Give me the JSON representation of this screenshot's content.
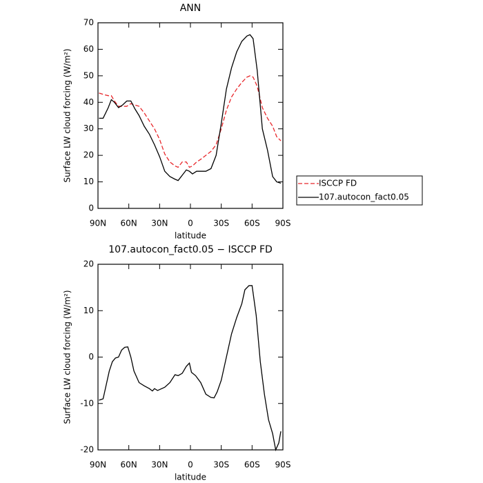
{
  "chart_data": [
    {
      "type": "line",
      "title": "ANN",
      "xlabel": "latitude",
      "ylabel": "Surface LW cloud forcing (W/m²)",
      "x": [
        89,
        85,
        80,
        77,
        74,
        70,
        66,
        62,
        58,
        54,
        50,
        45,
        40,
        35,
        30,
        25,
        20,
        15,
        12,
        8,
        4,
        1,
        -2,
        -6,
        -10,
        -15,
        -20,
        -25,
        -30,
        -35,
        -40,
        -45,
        -50,
        -55,
        -58,
        -61,
        -65,
        -70,
        -75,
        -80,
        -84,
        -88
      ],
      "series": [
        {
          "name": "ISCCP FD",
          "color": "#e8262a",
          "linestyle": "dashed",
          "values": [
            43.5,
            43,
            42.5,
            42.5,
            40.5,
            38.5,
            38.5,
            38.5,
            39.5,
            39,
            38.5,
            36,
            33,
            30,
            26,
            20.5,
            17.5,
            16,
            15.5,
            17.5,
            17.5,
            15.5,
            16,
            17.5,
            18.5,
            20,
            21.5,
            24,
            30,
            37,
            42,
            45,
            47.5,
            49.5,
            50,
            49.5,
            46,
            38,
            34,
            31,
            27,
            25.5
          ]
        },
        {
          "name": "107.autocon_fact0.05",
          "color": "#000000",
          "linestyle": "solid",
          "values": [
            34,
            34,
            38,
            41,
            40,
            38,
            39,
            40.5,
            40.5,
            37.5,
            35,
            31,
            28,
            24,
            19.5,
            14,
            12,
            11,
            10.5,
            12.5,
            14.5,
            14,
            13,
            14,
            14,
            14,
            15,
            20,
            32,
            45,
            53,
            59,
            63,
            65,
            65.5,
            64,
            52,
            30,
            22,
            12,
            10,
            9.5
          ]
        }
      ],
      "xlim": [
        90,
        -90
      ],
      "xticks": [
        {
          "value": 90,
          "label": "90N"
        },
        {
          "value": 60,
          "label": "60N"
        },
        {
          "value": 30,
          "label": "30N"
        },
        0,
        {
          "value": -30,
          "label": "30S"
        },
        {
          "value": -60,
          "label": "60S"
        },
        {
          "value": -90,
          "label": "90S"
        }
      ],
      "ylim": [
        0,
        70
      ],
      "yticks": [
        0,
        10,
        20,
        30,
        40,
        50,
        60,
        70
      ],
      "legend": "right"
    },
    {
      "type": "line",
      "title": "107.autocon_fact0.05 − ISCCP FD",
      "xlabel": "latitude",
      "ylabel": "Surface LW cloud forcing (W/m²)",
      "x": [
        89,
        85,
        82,
        79,
        76,
        73,
        70,
        67,
        64,
        61,
        58,
        55,
        50,
        45,
        40,
        37,
        35,
        32,
        25,
        20,
        15,
        12,
        8,
        4,
        1,
        -1,
        -5,
        -10,
        -15,
        -20,
        -23,
        -26,
        -30,
        -35,
        -40,
        -45,
        -50,
        -53,
        -57,
        -60,
        -64,
        -68,
        -72,
        -76,
        -80,
        -83,
        -86,
        -88
      ],
      "series": [
        {
          "color": "#000000",
          "linestyle": "solid",
          "values": [
            -9.3,
            -9,
            -6,
            -3,
            -1,
            -0.2,
            0,
            1.5,
            2.1,
            2.2,
            0,
            -3,
            -5.5,
            -6.2,
            -6.8,
            -7.3,
            -6.8,
            -7.2,
            -6.5,
            -5.5,
            -3.8,
            -4,
            -3.5,
            -2,
            -1.3,
            -3.3,
            -4,
            -5.5,
            -8,
            -8.7,
            -8.8,
            -7.5,
            -5,
            0,
            5,
            8.5,
            11.5,
            14.5,
            15.4,
            15.4,
            9,
            -1,
            -8,
            -13.5,
            -16.5,
            -20,
            -18.5,
            -16
          ]
        }
      ],
      "xlim": [
        90,
        -90
      ],
      "xticks": [
        {
          "value": 90,
          "label": "90N"
        },
        {
          "value": 60,
          "label": "60N"
        },
        {
          "value": 30,
          "label": "30N"
        },
        0,
        {
          "value": -30,
          "label": "30S"
        },
        {
          "value": -60,
          "label": "60S"
        },
        {
          "value": -90,
          "label": "90S"
        }
      ],
      "ylim": [
        -20,
        20
      ],
      "yticks": [
        -20,
        -10,
        0,
        10,
        20
      ]
    }
  ]
}
